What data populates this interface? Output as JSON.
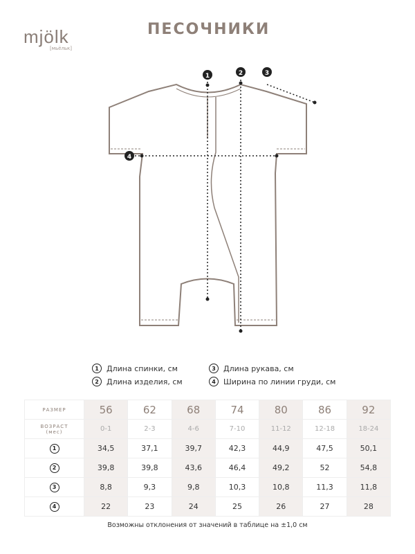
{
  "brand": {
    "name": "mjölk",
    "sub": "[мьёльк]"
  },
  "title": "ПЕСОЧНИКИ",
  "markers": [
    "1",
    "2",
    "3",
    "4"
  ],
  "legend": [
    {
      "num": "1",
      "label": "Длина спинки, см"
    },
    {
      "num": "2",
      "label": "Длина изделия, см"
    },
    {
      "num": "3",
      "label": "Длина рукава, см"
    },
    {
      "num": "4",
      "label": "Ширина по линии груди, см"
    }
  ],
  "table": {
    "size_label": "РАЗМЕР",
    "age_label": "ВОЗРАСТ",
    "age_unit": "(мес)",
    "sizes": [
      "56",
      "62",
      "68",
      "74",
      "80",
      "86",
      "92"
    ],
    "ages": [
      "0-1",
      "2-3",
      "4-6",
      "7-10",
      "11-12",
      "12-18",
      "18-24"
    ],
    "rows": [
      {
        "num": "1",
        "values": [
          "34,5",
          "37,1",
          "39,7",
          "42,3",
          "44,9",
          "47,5",
          "50,1"
        ]
      },
      {
        "num": "2",
        "values": [
          "39,8",
          "39,8",
          "43,6",
          "46,4",
          "49,2",
          "52",
          "54,8"
        ]
      },
      {
        "num": "3",
        "values": [
          "8,8",
          "9,3",
          "9,8",
          "10,3",
          "10,8",
          "11,3",
          "11,8"
        ]
      },
      {
        "num": "4",
        "values": [
          "22",
          "23",
          "24",
          "25",
          "26",
          "27",
          "28"
        ]
      }
    ]
  },
  "note": "Возможны отклонения от значений в таблице на ±1,0 см",
  "colors": {
    "accent": "#8e8078",
    "shade": "#f3efed"
  }
}
